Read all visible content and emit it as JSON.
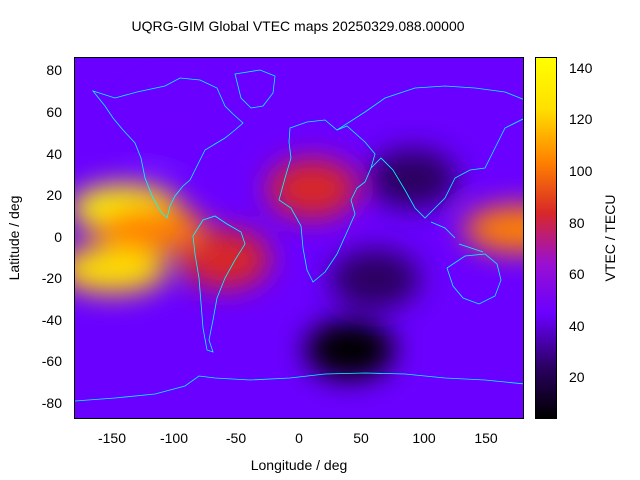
{
  "title": "UQRG-GIM Global VTEC maps 20250329.088.00000",
  "chart_data": {
    "type": "heatmap",
    "xlabel": "Longitude / deg",
    "ylabel": "Latitude / deg",
    "xlim": [
      -180,
      180
    ],
    "ylim": [
      -90,
      90
    ],
    "xticks": [
      "-150",
      "-100",
      "-50",
      "0",
      "50",
      "100",
      "150"
    ],
    "yticks": [
      "80",
      "60",
      "40",
      "20",
      "0",
      "-20",
      "-40",
      "-60",
      "-80"
    ],
    "colorbar": {
      "label": "VTEC / TECU",
      "range": [
        5,
        145
      ],
      "ticks": [
        "140",
        "120",
        "100",
        "80",
        "60",
        "40",
        "20"
      ],
      "colors": [
        "#000000",
        "#2a0060",
        "#6a00ff",
        "#9a10d0",
        "#d82828",
        "#ff8000",
        "#ffe000",
        "#ffff00"
      ]
    },
    "vtec_features": [
      {
        "lon": -140,
        "lat": 15,
        "vtec": 135
      },
      {
        "lon": -150,
        "lat": -15,
        "vtec": 120
      },
      {
        "lon": -120,
        "lat": 5,
        "vtec": 100
      },
      {
        "lon": -60,
        "lat": -10,
        "vtec": 90
      },
      {
        "lon": 10,
        "lat": 25,
        "vtec": 80
      },
      {
        "lon": 175,
        "lat": 5,
        "vtec": 95
      },
      {
        "lon": 40,
        "lat": -55,
        "vtec": 8
      },
      {
        "lon": 90,
        "lat": 30,
        "vtec": 20
      },
      {
        "lon": 60,
        "lat": -20,
        "vtec": 25
      },
      {
        "lon": -100,
        "lat": 60,
        "vtec": 45
      }
    ],
    "background_vtec": 38
  }
}
